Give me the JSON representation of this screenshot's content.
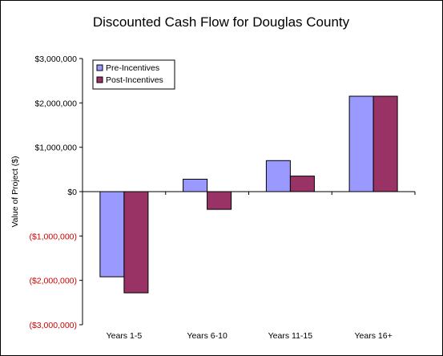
{
  "chart_data": {
    "type": "bar",
    "title": "Discounted Cash Flow for Douglas County",
    "ylabel": "Value of Project ($)",
    "xlabel": "",
    "categories": [
      "Years 1-5",
      "Years 6-10",
      "Years 11-15",
      "Years 16+"
    ],
    "series": [
      {
        "name": "Pre-Incentives",
        "color": "#9999ff",
        "values": [
          -1920000,
          280000,
          700000,
          2150000
        ]
      },
      {
        "name": "Post-Incentives",
        "color": "#993366",
        "values": [
          -2280000,
          -400000,
          350000,
          2150000
        ]
      }
    ],
    "ylim": [
      -3000000,
      3000000
    ],
    "yticks": [
      {
        "value": 3000000,
        "label": "$3,000,000"
      },
      {
        "value": 2000000,
        "label": "$2,000,000"
      },
      {
        "value": 1000000,
        "label": "$1,000,000"
      },
      {
        "value": 0,
        "label": "$0"
      },
      {
        "value": -1000000,
        "label": "($1,000,000)"
      },
      {
        "value": -2000000,
        "label": "($2,000,000)"
      },
      {
        "value": -3000000,
        "label": "($3,000,000)"
      }
    ],
    "negative_tick_color": "#cc0000",
    "grid": false,
    "legend_position": "top-left"
  }
}
